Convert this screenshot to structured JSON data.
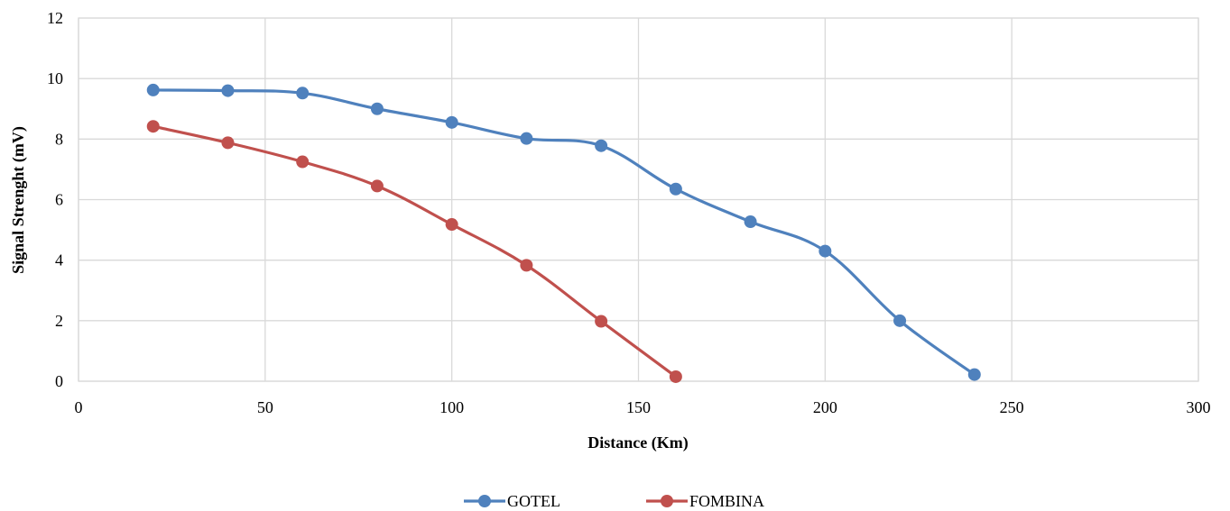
{
  "chart_data": {
    "type": "line",
    "xlabel": "Distance (Km)",
    "ylabel": "Signal Strenght (mV)",
    "xlim": [
      0,
      300
    ],
    "ylim": [
      0,
      12
    ],
    "xticks": [
      0,
      50,
      100,
      150,
      200,
      250,
      300
    ],
    "yticks": [
      0,
      2,
      4,
      6,
      8,
      10,
      12
    ],
    "grid": true,
    "smooth": true,
    "legend_position": "bottom",
    "series": [
      {
        "name": "GOTEL",
        "color": "#4F81BD",
        "x": [
          20,
          40,
          60,
          80,
          100,
          120,
          140,
          160,
          180,
          200,
          220,
          240
        ],
        "y": [
          9.62,
          9.6,
          9.52,
          9.0,
          8.55,
          8.02,
          7.78,
          6.35,
          5.27,
          4.3,
          2.0,
          0.22
        ]
      },
      {
        "name": "FOMBINA",
        "color": "#C0504D",
        "x": [
          20,
          40,
          60,
          80,
          100,
          120,
          140,
          160
        ],
        "y": [
          8.42,
          7.88,
          7.25,
          6.45,
          5.18,
          3.83,
          1.98,
          0.15
        ]
      }
    ]
  }
}
